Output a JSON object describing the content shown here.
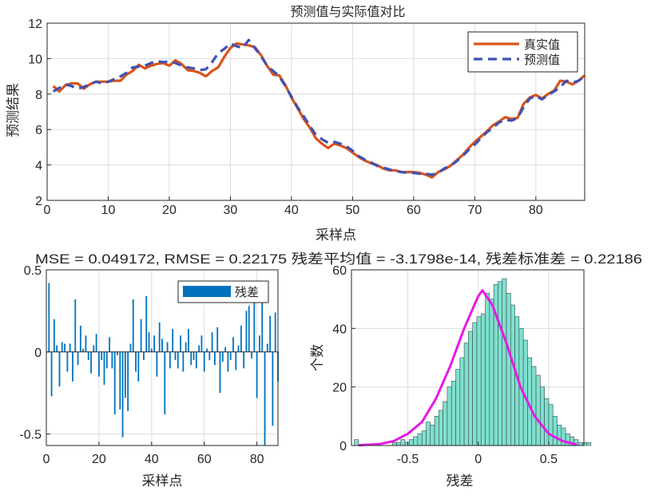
{
  "colors": {
    "actual": "#d95319",
    "predicted": "#3f51b5",
    "residual_bar": "#0072bd",
    "hist_fill": "#7fe0d0",
    "hist_edge": "#3a4a48",
    "density": "#e619e6",
    "grid": "#dcdcdc",
    "axis": "#262626"
  },
  "chart_data": [
    {
      "type": "line",
      "title": "预测值与实际值对比",
      "xlabel": "采样点",
      "ylabel": "预测结果",
      "xlim": [
        0,
        88
      ],
      "ylim": [
        2,
        12
      ],
      "xticks": [
        0,
        10,
        20,
        30,
        40,
        50,
        60,
        70,
        80
      ],
      "yticks": [
        2,
        4,
        6,
        8,
        10,
        12
      ],
      "grid": true,
      "legend_position": "top-right",
      "x": [
        1,
        2,
        3,
        4,
        5,
        6,
        7,
        8,
        9,
        10,
        11,
        12,
        13,
        14,
        15,
        16,
        17,
        18,
        19,
        20,
        21,
        22,
        23,
        24,
        25,
        26,
        27,
        28,
        29,
        30,
        31,
        32,
        33,
        34,
        35,
        36,
        37,
        38,
        39,
        40,
        41,
        42,
        43,
        44,
        45,
        46,
        47,
        48,
        49,
        50,
        51,
        52,
        53,
        54,
        55,
        56,
        57,
        58,
        59,
        60,
        61,
        62,
        63,
        64,
        65,
        66,
        67,
        68,
        69,
        70,
        71,
        72,
        73,
        74,
        75,
        76,
        77,
        78,
        79,
        80,
        81,
        82,
        83,
        84,
        85,
        86,
        87,
        88
      ],
      "series": [
        {
          "name": "真实值",
          "style": "solid",
          "values": [
            8.45,
            8.15,
            8.5,
            8.6,
            8.6,
            8.3,
            8.55,
            8.7,
            8.7,
            8.7,
            8.75,
            8.75,
            9.1,
            9.3,
            9.65,
            9.45,
            9.6,
            9.7,
            9.75,
            9.6,
            9.9,
            9.7,
            9.35,
            9.3,
            9.2,
            9.0,
            9.3,
            9.5,
            10.1,
            10.6,
            10.85,
            10.8,
            10.75,
            10.65,
            10.2,
            9.6,
            9.1,
            9.05,
            8.5,
            7.8,
            7.2,
            6.6,
            6.1,
            5.5,
            5.2,
            4.95,
            5.2,
            5.1,
            4.95,
            4.7,
            4.45,
            4.25,
            4.1,
            4.0,
            3.8,
            3.7,
            3.7,
            3.6,
            3.6,
            3.6,
            3.55,
            3.45,
            3.3,
            3.6,
            3.75,
            3.95,
            4.25,
            4.55,
            4.95,
            5.3,
            5.6,
            5.9,
            6.25,
            6.45,
            6.7,
            6.6,
            6.65,
            7.45,
            7.8,
            7.95,
            7.75,
            8.0,
            8.2,
            8.75,
            8.7,
            8.55,
            8.75,
            9.05
          ]
        },
        {
          "name": "预测值",
          "style": "dashed",
          "values": [
            8.15,
            8.35,
            8.55,
            8.45,
            8.3,
            8.4,
            8.55,
            8.7,
            8.6,
            8.7,
            8.85,
            9.0,
            9.2,
            9.5,
            9.55,
            9.6,
            9.75,
            9.85,
            9.8,
            9.85,
            9.75,
            9.6,
            9.5,
            9.45,
            9.35,
            9.4,
            9.8,
            10.3,
            10.55,
            10.85,
            10.7,
            10.6,
            11.05,
            10.6,
            10.15,
            9.6,
            9.3,
            9.0,
            8.45,
            7.85,
            7.25,
            6.75,
            6.2,
            5.7,
            5.45,
            5.25,
            5.3,
            5.2,
            5.05,
            4.8,
            4.5,
            4.3,
            4.15,
            3.95,
            3.85,
            3.75,
            3.65,
            3.6,
            3.55,
            3.55,
            3.5,
            3.5,
            3.45,
            3.55,
            3.8,
            3.95,
            4.2,
            4.5,
            4.85,
            5.15,
            5.5,
            5.85,
            6.1,
            6.4,
            6.55,
            6.5,
            6.65,
            7.25,
            7.75,
            7.9,
            7.7,
            7.95,
            8.15,
            8.4,
            8.75,
            8.65,
            8.75,
            9.0
          ]
        }
      ]
    },
    {
      "type": "bar",
      "title": "MSE = 0.049172, RMSE = 0.22175 残差平均值 = -3.1798e-14, 残差标准差 = 0.22186",
      "xlabel": "采样点",
      "ylabel": "",
      "xlim": [
        0,
        88
      ],
      "ylim": [
        -0.57,
        0.5
      ],
      "xticks": [
        0,
        20,
        40,
        60,
        80
      ],
      "yticks": [
        -0.5,
        0,
        0.5
      ],
      "grid": true,
      "legend_position": "top-right",
      "series": [
        {
          "name": "残差",
          "x": [
            1,
            2,
            3,
            4,
            5,
            6,
            7,
            8,
            9,
            10,
            11,
            12,
            13,
            14,
            15,
            16,
            17,
            18,
            19,
            20,
            21,
            22,
            23,
            24,
            25,
            26,
            27,
            28,
            29,
            30,
            31,
            32,
            33,
            34,
            35,
            36,
            37,
            38,
            39,
            40,
            41,
            42,
            43,
            44,
            45,
            46,
            47,
            48,
            49,
            50,
            51,
            52,
            53,
            54,
            55,
            56,
            57,
            58,
            59,
            60,
            61,
            62,
            63,
            64,
            65,
            66,
            67,
            68,
            69,
            70,
            71,
            72,
            73,
            74,
            75,
            76,
            77,
            78,
            79,
            80,
            81,
            82,
            83,
            84,
            85,
            86,
            87,
            88
          ],
          "values": [
            0.42,
            -0.27,
            0.2,
            0.04,
            -0.21,
            0.06,
            0.05,
            -0.12,
            0.05,
            -0.18,
            0.32,
            -0.08,
            0.16,
            0.02,
            0.1,
            -0.05,
            -0.13,
            0.04,
            0.11,
            -0.15,
            -0.05,
            -0.2,
            -0.1,
            0.09,
            -0.1,
            -0.38,
            -0.02,
            -0.35,
            -0.52,
            -0.28,
            -0.36,
            0.05,
            0.32,
            -0.12,
            -0.18,
            0.2,
            -0.05,
            0.34,
            0.12,
            0.02,
            0.1,
            -0.15,
            0.18,
            0.08,
            -0.38,
            0.06,
            -0.1,
            0.14,
            -0.05,
            -0.1,
            0.1,
            -0.12,
            0.06,
            0.14,
            -0.08,
            -0.05,
            -0.1,
            0.04,
            0.1,
            -0.12,
            0.02,
            -0.05,
            0.12,
            -0.08,
            0.15,
            -0.25,
            -0.06,
            0.03,
            -0.12,
            -0.05,
            0.09,
            -0.11,
            0.04,
            0.16,
            -0.1,
            0.25,
            0.28,
            -0.04,
            0.38,
            -0.28,
            0.1,
            0.32,
            -0.57,
            0.05,
            0.22,
            -0.45,
            0.24,
            -0.18
          ]
        }
      ]
    },
    {
      "type": "histogram",
      "title": "",
      "xlabel": "残差",
      "ylabel": "个数",
      "xlim": [
        -0.9,
        0.75
      ],
      "ylim": [
        0,
        60
      ],
      "xticks": [
        -0.5,
        0,
        0.5
      ],
      "yticks": [
        0,
        20,
        40,
        60
      ],
      "grid": true,
      "bin_start": -0.88,
      "bin_width": 0.03,
      "counts": [
        2,
        0,
        0,
        0,
        0,
        0,
        0,
        0,
        0,
        1,
        1,
        2,
        1,
        2,
        3,
        4,
        5,
        8,
        7,
        10,
        12,
        15,
        20,
        22,
        26,
        30,
        35,
        39,
        42,
        44,
        45,
        52,
        50,
        55,
        56,
        57,
        52,
        48,
        44,
        40,
        36,
        30,
        27,
        24,
        20,
        16,
        14,
        10,
        7,
        6,
        4,
        3,
        2,
        1,
        1,
        1
      ],
      "density_x": [
        -0.85,
        -0.7,
        -0.6,
        -0.5,
        -0.4,
        -0.3,
        -0.2,
        -0.1,
        0.0,
        0.03,
        0.1,
        0.2,
        0.3,
        0.4,
        0.5,
        0.6,
        0.7
      ],
      "density_y": [
        0.1,
        0.5,
        1.5,
        4,
        8,
        16,
        27,
        40,
        51,
        53,
        48,
        35,
        20,
        10,
        4,
        1.5,
        0.3
      ]
    }
  ],
  "legends": {
    "top": [
      "真实值",
      "预测值"
    ],
    "residual": [
      "残差"
    ]
  }
}
